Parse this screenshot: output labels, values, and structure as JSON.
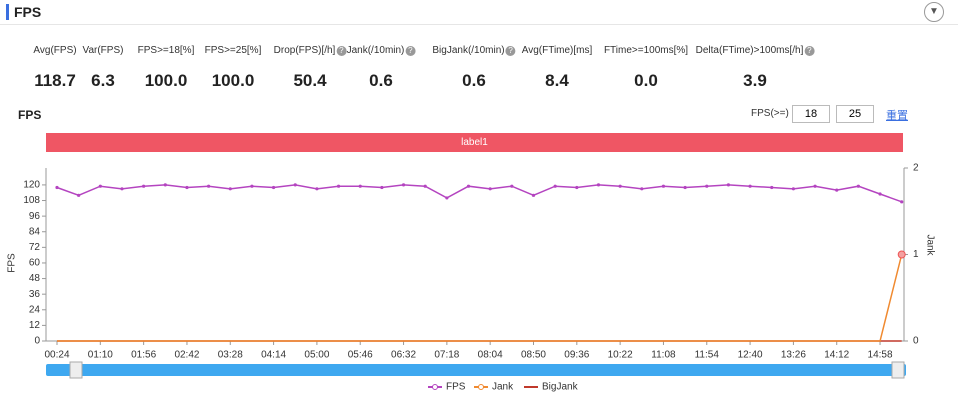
{
  "header": {
    "title": "FPS"
  },
  "stats": [
    {
      "label": "Avg(FPS)",
      "value": "118.7"
    },
    {
      "label": "Var(FPS)",
      "value": "6.3"
    },
    {
      "label": "FPS>=18[%]",
      "value": "100.0"
    },
    {
      "label": "FPS>=25[%]",
      "value": "100.0"
    },
    {
      "label": "Drop(FPS)[/h]",
      "value": "50.4"
    },
    {
      "label": "Jank(/10min)",
      "value": "0.6"
    },
    {
      "label": "BigJank(/10min)",
      "value": "0.6"
    },
    {
      "label": "Avg(FTime)[ms]",
      "value": "8.4"
    },
    {
      "label": "FTime>=100ms[%]",
      "value": "0.0"
    },
    {
      "label": "Delta(FTime)>100ms[/h]",
      "value": "3.9"
    }
  ],
  "controls": {
    "label": "FPS(>=)",
    "inputs": [
      "18",
      "25"
    ],
    "reset": "重置"
  },
  "chart_data": {
    "type": "line",
    "title": "FPS",
    "band_label": "label1",
    "y_label": "FPS",
    "y2_label": "Jank",
    "categories": [
      "00:24",
      null,
      "01:10",
      null,
      "01:56",
      null,
      "02:42",
      null,
      "03:28",
      null,
      "04:14",
      null,
      "05:00",
      null,
      "05:46",
      null,
      "06:32",
      null,
      "07:18",
      null,
      "08:04",
      null,
      "08:50",
      null,
      "09:36",
      null,
      "10:22",
      null,
      "11:08",
      null,
      "11:54",
      null,
      "12:40",
      null,
      "13:26",
      null,
      "14:12",
      null,
      "14:58",
      null
    ],
    "series": [
      {
        "name": "FPS",
        "color": "#b444c0",
        "values": [
          118,
          112,
          119,
          117,
          119,
          120,
          118,
          119,
          117,
          119,
          118,
          120,
          117,
          119,
          119,
          118,
          120,
          119,
          110,
          119,
          117,
          119,
          112,
          119,
          118,
          120,
          119,
          117,
          119,
          118,
          119,
          120,
          119,
          118,
          117,
          119,
          116,
          119,
          113,
          107
        ]
      },
      {
        "name": "Jank",
        "color": "#f08a30",
        "axis": "y2",
        "values": [
          0,
          0,
          0,
          0,
          0,
          0,
          0,
          0,
          0,
          0,
          0,
          0,
          0,
          0,
          0,
          0,
          0,
          0,
          0,
          0,
          0,
          0,
          0,
          0,
          0,
          0,
          0,
          0,
          0,
          0,
          0,
          0,
          0,
          0,
          0,
          0,
          0,
          0,
          0,
          1
        ]
      },
      {
        "name": "BigJank",
        "color": "#c0392b",
        "axis": "y2",
        "values": [
          0,
          0,
          0,
          0,
          0,
          0,
          0,
          0,
          0,
          0,
          0,
          0,
          0,
          0,
          0,
          0,
          0,
          0,
          0,
          0,
          0,
          0,
          0,
          0,
          0,
          0,
          0,
          0,
          0,
          0,
          0,
          0,
          0,
          0,
          0,
          0,
          0,
          0,
          0,
          0
        ]
      }
    ],
    "ylim": [
      0,
      133
    ],
    "yticks": [
      0,
      12,
      24,
      36,
      48,
      60,
      72,
      84,
      96,
      108,
      120
    ],
    "y2lim": [
      0,
      2
    ],
    "y2ticks": [
      0,
      1,
      2
    ]
  }
}
